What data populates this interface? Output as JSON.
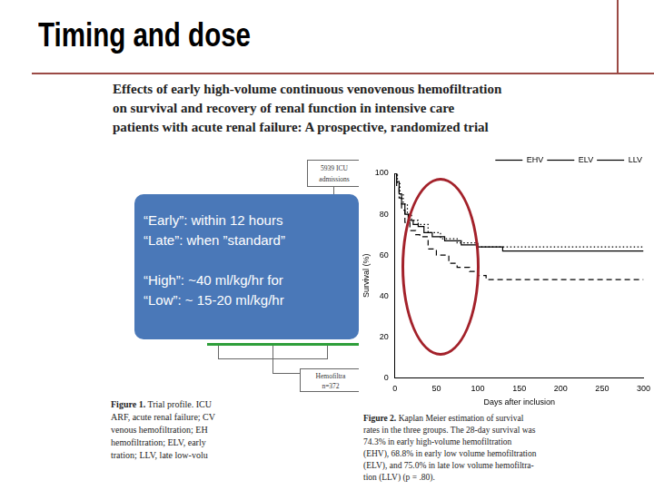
{
  "slide": {
    "title": "Timing and dose",
    "paper_title": [
      "Effects of early high-volume continuous venovenous hemofiltration",
      "on survival and recovery of renal function in intensive care",
      "patients with acute renal failure: A prospective, randomized trial"
    ],
    "callout": [
      [
        "“Early”: within 12 hours",
        "“Late”: when ”standard”"
      ],
      [
        "“High”: ~40 ml/kg/hr for",
        "“Low”: ~ 15-20 ml/kg/hr"
      ]
    ],
    "diagram": {
      "top_box": [
        "5939 ICU",
        "admissions"
      ],
      "bottom_box": [
        "Hemofiltra",
        "n=372"
      ]
    },
    "figure1_caption": {
      "label": "Figure 1.",
      "text": [
        "Trial profile. ICU",
        "ARF, acute renal failure; CV",
        "venous hemofiltration; EH",
        "hemofiltration; ELV, early",
        "tration; LLV, late low-volu"
      ]
    },
    "figure2_caption": {
      "label": "Figure 2.",
      "text": [
        "Kaplan Meier estimation of survival",
        "rates in the three groups. The 28-day survival was",
        "74.3% in early high-volume hemofiltration",
        "(EHV), 68.8% in early low volume hemofiltration",
        "(ELV), and 75.0% in late low volume hemofiltra-",
        "tion (LLV) (p = .80)."
      ]
    }
  },
  "chart_data": {
    "type": "line",
    "xlabel": "Days after inclusion",
    "ylabel": "Survival (%)",
    "xlim": [
      0,
      300
    ],
    "xticks": [
      0,
      50,
      100,
      150,
      200,
      250,
      300
    ],
    "ylim": [
      0,
      100
    ],
    "yticks": [
      0,
      20,
      40,
      60,
      80,
      100
    ],
    "grid": false,
    "legend": "upper right",
    "series": [
      {
        "name": "EHV",
        "color": "#000000",
        "line_style": "solid",
        "x": [
          0,
          2,
          5,
          8,
          12,
          16,
          22,
          28,
          35,
          45,
          60,
          80,
          100,
          130,
          300
        ],
        "values": [
          100,
          96,
          90,
          85,
          80,
          77,
          75,
          74,
          71,
          69,
          67,
          65,
          64,
          62,
          62
        ]
      },
      {
        "name": "ELV",
        "color": "#000000",
        "line_style": "dashed",
        "x": [
          0,
          2,
          5,
          8,
          12,
          18,
          25,
          30,
          40,
          50,
          65,
          75,
          90,
          100,
          110,
          300
        ],
        "values": [
          100,
          94,
          88,
          82,
          76,
          72,
          70,
          69,
          63,
          60,
          56,
          54,
          52,
          50,
          48,
          48
        ]
      },
      {
        "name": "LLV",
        "color": "#000000",
        "line_style": "dotted",
        "x": [
          0,
          3,
          6,
          10,
          15,
          20,
          28,
          40,
          55,
          75,
          100,
          300
        ],
        "values": [
          100,
          95,
          90,
          85,
          80,
          77,
          75,
          71,
          68,
          66,
          64,
          64
        ]
      }
    ]
  }
}
